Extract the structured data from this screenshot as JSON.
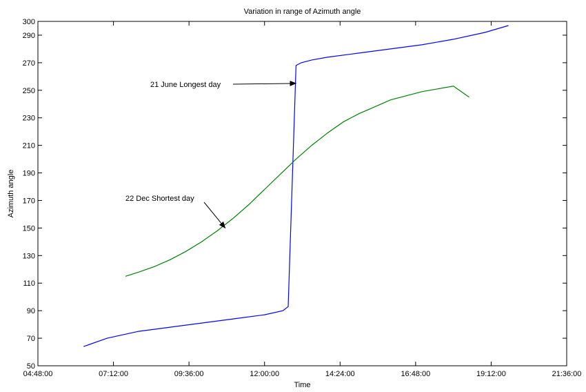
{
  "chart_data": {
    "type": "line",
    "title": "Variation in range of Azimuth angle",
    "xlabel": "Time",
    "ylabel": "Azimuth angle",
    "xlim": [
      "04:48:00",
      "21:36:00"
    ],
    "ylim": [
      50,
      300
    ],
    "x_ticks": [
      "04:48:00",
      "07:12:00",
      "09:36:00",
      "12:00:00",
      "14:24:00",
      "16:48:00",
      "19:12:00",
      "21:36:00"
    ],
    "y_ticks": [
      50,
      70,
      90,
      110,
      130,
      150,
      170,
      190,
      210,
      230,
      250,
      270,
      290,
      300
    ],
    "grid": false,
    "series": [
      {
        "color": "#0000ff",
        "x": [
          "06:15:00",
          "07:00:00",
          "08:00:00",
          "09:00:00",
          "10:00:00",
          "11:00:00",
          "12:00:00",
          "12:35:00",
          "12:45:00",
          "13:00:00",
          "13:10:00",
          "13:30:00",
          "14:00:00",
          "15:00:00",
          "16:00:00",
          "17:00:00",
          "18:00:00",
          "19:00:00",
          "19:45:00"
        ],
        "values": [
          64,
          70,
          75,
          78,
          81,
          84,
          87,
          90,
          93,
          268,
          270,
          272,
          274,
          277,
          280,
          283,
          287,
          292,
          297
        ]
      },
      {
        "color": "#008000",
        "x": [
          "07:35:00",
          "08:00:00",
          "08:30:00",
          "09:00:00",
          "09:30:00",
          "10:00:00",
          "10:30:00",
          "11:00:00",
          "11:30:00",
          "12:00:00",
          "12:30:00",
          "13:00:00",
          "13:30:00",
          "14:00:00",
          "14:30:00",
          "15:00:00",
          "15:30:00",
          "16:00:00",
          "16:30:00",
          "17:00:00",
          "17:30:00",
          "18:00:00",
          "18:30:00"
        ],
        "values": [
          115,
          118,
          122,
          127,
          133,
          140,
          148,
          157,
          167,
          178,
          189,
          200,
          210,
          219,
          227,
          233,
          238,
          243,
          246,
          249,
          251,
          253,
          245
        ]
      }
    ],
    "annotations": [
      {
        "text": "21 June Longest day",
        "arrow_to": [
          "13:00:00",
          255
        ]
      },
      {
        "text": "22 Dec Shortest day",
        "arrow_to": [
          "10:45:00",
          150
        ]
      }
    ]
  }
}
